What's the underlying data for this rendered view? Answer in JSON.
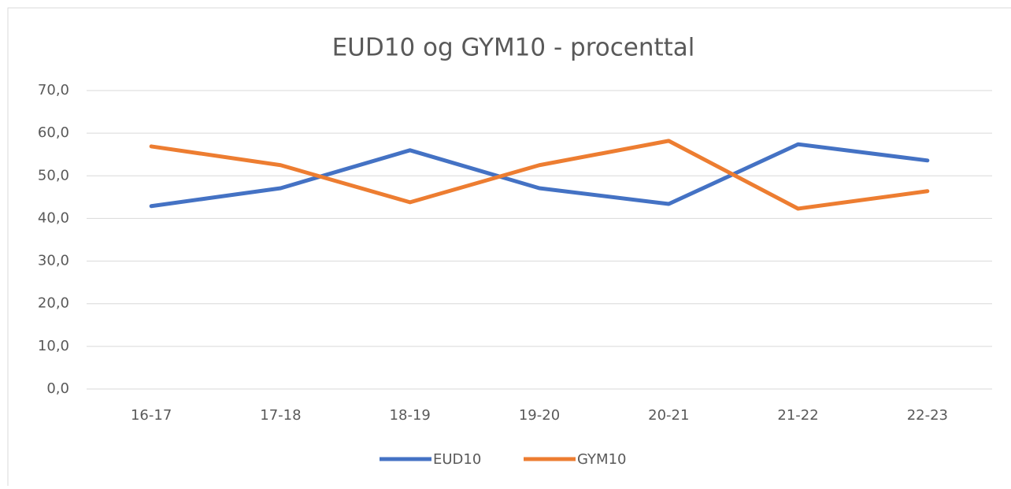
{
  "chart_data": {
    "type": "line",
    "title": "EUD10 og GYM10 - procenttal",
    "categories": [
      "16-17",
      "17-18",
      "18-19",
      "19-20",
      "20-21",
      "21-22",
      "22-23"
    ],
    "series": [
      {
        "name": "EUD10",
        "color": "#4472c4",
        "values": [
          42.9,
          47.1,
          56.0,
          47.1,
          43.4,
          57.4,
          53.6
        ]
      },
      {
        "name": "GYM10",
        "color": "#ed7d31",
        "values": [
          56.9,
          52.5,
          43.8,
          52.5,
          58.2,
          42.3,
          46.4
        ]
      }
    ],
    "ylim": [
      0,
      70
    ],
    "yticks": [
      {
        "value": 0,
        "label": "0,0"
      },
      {
        "value": 10,
        "label": "10,0"
      },
      {
        "value": 20,
        "label": "20,0"
      },
      {
        "value": 30,
        "label": "30,0"
      },
      {
        "value": 40,
        "label": "40,0"
      },
      {
        "value": 50,
        "label": "50,0"
      },
      {
        "value": 60,
        "label": "60,0"
      },
      {
        "value": 70,
        "label": "70,0"
      }
    ],
    "grid": true,
    "legend": "bottom"
  }
}
